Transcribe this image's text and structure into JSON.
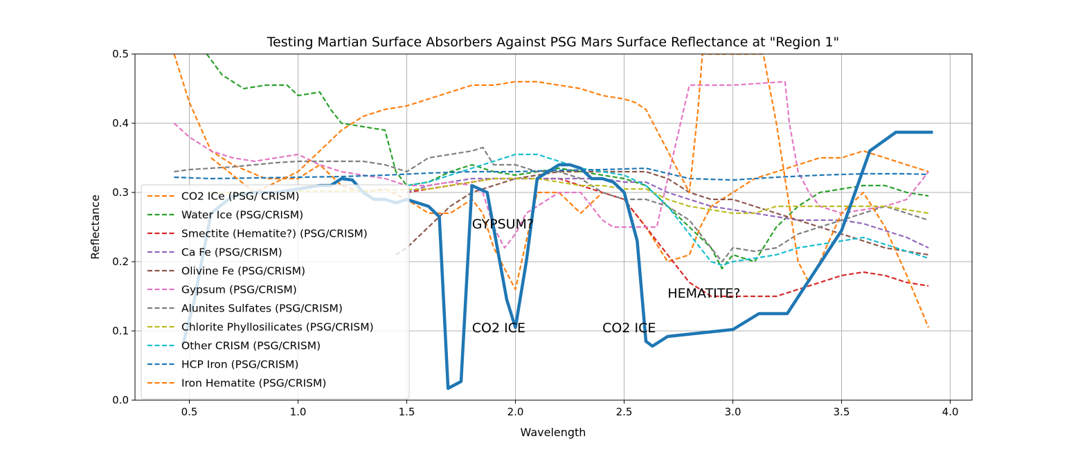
{
  "chart_data": {
    "type": "line",
    "title": "Testing Martian Surface Absorbers Against PSG Mars Surface Reflectance at \"Region 1\"",
    "xlabel": "Wavelength",
    "ylabel": "Reflectance",
    "xlim": [
      0.25,
      4.1
    ],
    "ylim": [
      0.0,
      0.5
    ],
    "xticks": [
      0.5,
      1.0,
      1.5,
      2.0,
      2.5,
      3.0,
      3.5,
      4.0
    ],
    "xtick_labels": [
      "0.5",
      "1.0",
      "1.5",
      "2.0",
      "2.5",
      "3.0",
      "3.5",
      "4.0"
    ],
    "yticks": [
      0.0,
      0.1,
      0.2,
      0.3,
      0.4,
      0.5
    ],
    "ytick_labels": [
      "0.0",
      "0.1",
      "0.2",
      "0.3",
      "0.4",
      "0.5"
    ],
    "grid": true,
    "legend_position": "lower-left",
    "annotations": [
      {
        "text": "GYPSUM?",
        "x": 1.8,
        "y": 0.25
      },
      {
        "text": "CO2 ICE",
        "x": 1.8,
        "y": 0.1
      },
      {
        "text": "CO2 ICE",
        "x": 2.4,
        "y": 0.1
      },
      {
        "text": "HEMATITE?",
        "x": 2.7,
        "y": 0.15
      }
    ],
    "psg_reflectance": {
      "color": "#1f77b4",
      "x": [
        0.47,
        0.52,
        0.6,
        0.7,
        0.8,
        0.9,
        1.0,
        1.1,
        1.15,
        1.2,
        1.25,
        1.3,
        1.35,
        1.4,
        1.45,
        1.5,
        1.55,
        1.6,
        1.65,
        1.69,
        1.75,
        1.8,
        1.87,
        1.96,
        2.0,
        2.05,
        2.1,
        2.15,
        2.2,
        2.25,
        2.3,
        2.35,
        2.4,
        2.45,
        2.5,
        2.56,
        2.6,
        2.63,
        2.7,
        3.0,
        3.12,
        3.25,
        3.5,
        3.63,
        3.75,
        3.92
      ],
      "y": [
        0.08,
        0.14,
        0.27,
        0.295,
        0.3,
        0.3,
        0.305,
        0.31,
        0.31,
        0.32,
        0.318,
        0.3,
        0.29,
        0.29,
        0.285,
        0.29,
        0.285,
        0.28,
        0.265,
        0.017,
        0.027,
        0.31,
        0.3,
        0.145,
        0.105,
        0.2,
        0.32,
        0.33,
        0.34,
        0.34,
        0.335,
        0.32,
        0.32,
        0.315,
        0.3,
        0.23,
        0.085,
        0.078,
        0.092,
        0.102,
        0.125,
        0.125,
        0.245,
        0.36,
        0.387,
        0.387
      ]
    },
    "series": [
      {
        "name": "CO2 ICe (PSG/ CRISM)",
        "color": "#ff7f0e",
        "x": [
          0.43,
          0.5,
          0.6,
          0.7,
          0.85,
          1.0,
          1.1,
          1.2,
          1.3,
          1.4,
          1.5,
          1.6,
          1.7,
          1.8,
          1.85,
          1.9,
          2.0,
          2.1,
          2.2,
          2.3,
          2.4,
          2.5,
          2.6,
          2.7,
          2.8,
          2.85,
          2.9,
          3.0,
          3.1,
          3.2,
          3.3,
          3.4,
          3.5,
          3.6,
          3.7,
          3.8,
          3.9
        ],
        "y": [
          0.5,
          0.43,
          0.36,
          0.34,
          0.32,
          0.32,
          0.34,
          0.31,
          0.3,
          0.305,
          0.29,
          0.27,
          0.27,
          0.29,
          0.27,
          0.22,
          0.16,
          0.3,
          0.3,
          0.27,
          0.3,
          0.29,
          0.25,
          0.2,
          0.21,
          0.25,
          0.28,
          0.3,
          0.32,
          0.33,
          0.34,
          0.35,
          0.35,
          0.36,
          0.35,
          0.34,
          0.33
        ]
      },
      {
        "name": "Water Ice (PSG/CRISM)",
        "color": "#2ca02c",
        "x": [
          0.58,
          0.65,
          0.75,
          0.85,
          0.95,
          1.0,
          1.1,
          1.15,
          1.2,
          1.3,
          1.4,
          1.45,
          1.5,
          1.6,
          1.7,
          1.8,
          1.9,
          2.0,
          2.1,
          2.2,
          2.3,
          2.4,
          2.5,
          2.6,
          2.7,
          2.8,
          2.9,
          2.95,
          3.0,
          3.1,
          3.2,
          3.3,
          3.4,
          3.5,
          3.6,
          3.7,
          3.8,
          3.9
        ],
        "y": [
          0.5,
          0.47,
          0.45,
          0.455,
          0.455,
          0.44,
          0.445,
          0.42,
          0.4,
          0.395,
          0.39,
          0.33,
          0.31,
          0.315,
          0.33,
          0.34,
          0.33,
          0.325,
          0.33,
          0.335,
          0.33,
          0.325,
          0.32,
          0.31,
          0.28,
          0.25,
          0.22,
          0.19,
          0.21,
          0.2,
          0.25,
          0.28,
          0.3,
          0.305,
          0.31,
          0.31,
          0.3,
          0.295
        ]
      },
      {
        "name": "Smectite (Hematite?) (PSG/CRISM)",
        "color": "#d62728",
        "x": [
          1.5,
          1.6,
          1.7,
          1.8,
          1.9,
          2.0,
          2.1,
          2.2,
          2.3,
          2.4,
          2.5,
          2.6,
          2.7,
          2.8,
          2.9,
          3.0,
          3.1,
          3.2,
          3.3,
          3.4,
          3.5,
          3.6,
          3.7,
          3.8,
          3.9
        ],
        "y": [
          0.3,
          0.305,
          0.31,
          0.315,
          0.32,
          0.32,
          0.32,
          0.32,
          0.31,
          0.3,
          0.29,
          0.25,
          0.21,
          0.17,
          0.15,
          0.15,
          0.15,
          0.15,
          0.16,
          0.17,
          0.18,
          0.185,
          0.18,
          0.17,
          0.165
        ]
      },
      {
        "name": "Ca Fe (PSG/CRISM)",
        "color": "#9467bd",
        "x": [
          1.5,
          1.6,
          1.7,
          1.8,
          1.9,
          2.0,
          2.1,
          2.2,
          2.3,
          2.4,
          2.5,
          2.6,
          2.7,
          2.8,
          2.9,
          3.0,
          3.1,
          3.2,
          3.3,
          3.4,
          3.5,
          3.6,
          3.7,
          3.8,
          3.9
        ],
        "y": [
          0.3,
          0.31,
          0.315,
          0.32,
          0.32,
          0.32,
          0.32,
          0.32,
          0.32,
          0.32,
          0.315,
          0.315,
          0.3,
          0.29,
          0.28,
          0.275,
          0.27,
          0.265,
          0.26,
          0.26,
          0.26,
          0.255,
          0.245,
          0.235,
          0.22
        ]
      },
      {
        "name": "Olivine Fe (PSG/CRISM)",
        "color": "#8c564b",
        "x": [
          1.45,
          1.5,
          1.55,
          1.6,
          1.7,
          1.8,
          1.9,
          2.0,
          2.1,
          2.2,
          2.3,
          2.4,
          2.5,
          2.6,
          2.7,
          2.8,
          2.9,
          3.0,
          3.1,
          3.2,
          3.3,
          3.4,
          3.5,
          3.6,
          3.7,
          3.8,
          3.9
        ],
        "y": [
          0.21,
          0.22,
          0.235,
          0.25,
          0.28,
          0.3,
          0.31,
          0.32,
          0.325,
          0.33,
          0.33,
          0.33,
          0.33,
          0.33,
          0.32,
          0.3,
          0.29,
          0.29,
          0.28,
          0.27,
          0.26,
          0.25,
          0.24,
          0.23,
          0.22,
          0.215,
          0.21
        ]
      },
      {
        "name": "Gypsum (PSG/CRISM)",
        "color": "#e377c2",
        "x": [
          0.43,
          0.5,
          0.6,
          0.7,
          0.8,
          0.9,
          1.0,
          1.1,
          1.2,
          1.3,
          1.4,
          1.5,
          1.6,
          1.7,
          1.8,
          1.85,
          1.9,
          1.95,
          2.0,
          2.05,
          2.1,
          2.2,
          2.3,
          2.35,
          2.4,
          2.45,
          2.5,
          2.6,
          2.65,
          2.7,
          2.8,
          3.0,
          3.24,
          3.26,
          3.3,
          3.35,
          3.4,
          3.5,
          3.6,
          3.7,
          3.8,
          3.9
        ],
        "y": [
          0.4,
          0.38,
          0.36,
          0.35,
          0.345,
          0.35,
          0.355,
          0.34,
          0.33,
          0.325,
          0.32,
          0.31,
          0.31,
          0.315,
          0.31,
          0.3,
          0.25,
          0.22,
          0.24,
          0.27,
          0.28,
          0.3,
          0.3,
          0.28,
          0.26,
          0.25,
          0.25,
          0.25,
          0.25,
          0.32,
          0.455,
          0.455,
          0.46,
          0.4,
          0.33,
          0.3,
          0.28,
          0.27,
          0.275,
          0.28,
          0.29,
          0.33
        ]
      },
      {
        "name": "Alunites Sulfates (PSG/CRISM)",
        "color": "#7f7f7f",
        "x": [
          0.43,
          0.5,
          0.6,
          0.7,
          0.8,
          0.9,
          1.0,
          1.1,
          1.2,
          1.3,
          1.4,
          1.5,
          1.6,
          1.7,
          1.8,
          1.85,
          1.9,
          2.0,
          2.1,
          2.2,
          2.3,
          2.4,
          2.5,
          2.6,
          2.7,
          2.8,
          2.9,
          2.95,
          3.0,
          3.1,
          3.2,
          3.3,
          3.4,
          3.5,
          3.6,
          3.7,
          3.8,
          3.9
        ],
        "y": [
          0.33,
          0.333,
          0.335,
          0.337,
          0.34,
          0.343,
          0.345,
          0.345,
          0.345,
          0.345,
          0.34,
          0.33,
          0.35,
          0.355,
          0.36,
          0.365,
          0.34,
          0.34,
          0.33,
          0.33,
          0.32,
          0.3,
          0.29,
          0.29,
          0.28,
          0.26,
          0.22,
          0.2,
          0.22,
          0.215,
          0.22,
          0.24,
          0.25,
          0.26,
          0.27,
          0.28,
          0.27,
          0.26
        ]
      },
      {
        "name": "Chlorite Phyllosilicates (PSG/CRISM)",
        "color": "#bcbd22",
        "x": [
          0.6,
          0.8,
          1.0,
          1.2,
          1.4,
          1.5,
          1.6,
          1.7,
          1.8,
          1.9,
          2.0,
          2.1,
          2.2,
          2.3,
          2.4,
          2.5,
          2.6,
          2.7,
          2.8,
          2.9,
          3.0,
          3.1,
          3.2,
          3.3,
          3.4,
          3.5,
          3.6,
          3.7,
          3.8,
          3.9
        ],
        "y": [
          0.3,
          0.3,
          0.302,
          0.302,
          0.303,
          0.304,
          0.305,
          0.31,
          0.315,
          0.32,
          0.32,
          0.32,
          0.315,
          0.31,
          0.31,
          0.305,
          0.305,
          0.29,
          0.28,
          0.275,
          0.27,
          0.27,
          0.28,
          0.28,
          0.28,
          0.28,
          0.28,
          0.28,
          0.275,
          0.27
        ]
      },
      {
        "name": "Other CRISM (PSG/CRISM)",
        "color": "#17becf",
        "x": [
          1.5,
          1.6,
          1.7,
          1.8,
          1.9,
          2.0,
          2.1,
          2.2,
          2.3,
          2.4,
          2.5,
          2.6,
          2.7,
          2.8,
          2.9,
          2.95,
          3.0,
          3.1,
          3.2,
          3.3,
          3.4,
          3.5,
          3.6,
          3.7,
          3.8,
          3.9
        ],
        "y": [
          0.31,
          0.315,
          0.325,
          0.335,
          0.345,
          0.355,
          0.355,
          0.345,
          0.335,
          0.33,
          0.325,
          0.31,
          0.28,
          0.24,
          0.2,
          0.195,
          0.2,
          0.205,
          0.21,
          0.22,
          0.225,
          0.23,
          0.235,
          0.225,
          0.215,
          0.205
        ]
      },
      {
        "name": "HCP Iron (PSG/CRISM)",
        "color": "#1f77b4",
        "x": [
          0.43,
          0.6,
          0.8,
          1.0,
          1.2,
          1.4,
          1.6,
          1.8,
          2.0,
          2.2,
          2.4,
          2.6,
          2.8,
          3.0,
          3.2,
          3.4,
          3.6,
          3.8,
          3.9
        ],
        "y": [
          0.322,
          0.32,
          0.321,
          0.322,
          0.323,
          0.325,
          0.328,
          0.33,
          0.33,
          0.332,
          0.333,
          0.335,
          0.32,
          0.318,
          0.322,
          0.325,
          0.327,
          0.327,
          0.326
        ]
      },
      {
        "name": "Iron Hematite (PSG/CRISM)",
        "color": "#ff7f0e",
        "x": [
          0.6,
          0.8,
          1.0,
          1.1,
          1.2,
          1.3,
          1.4,
          1.5,
          1.6,
          1.7,
          1.8,
          1.9,
          2.0,
          2.1,
          2.2,
          2.3,
          2.4,
          2.5,
          2.55,
          2.6,
          2.7,
          2.8,
          2.84,
          2.86,
          2.9,
          2.95,
          3.0,
          3.1,
          3.14,
          3.2,
          3.25,
          3.3,
          3.35,
          3.4,
          3.5,
          3.6,
          3.7,
          3.8,
          3.9
        ],
        "y": [
          0.35,
          0.3,
          0.33,
          0.36,
          0.39,
          0.41,
          0.42,
          0.425,
          0.435,
          0.445,
          0.455,
          0.455,
          0.46,
          0.46,
          0.455,
          0.45,
          0.44,
          0.435,
          0.43,
          0.42,
          0.36,
          0.3,
          0.42,
          0.5,
          0.5,
          0.5,
          0.5,
          0.5,
          0.5,
          0.4,
          0.3,
          0.2,
          0.17,
          0.2,
          0.27,
          0.3,
          0.25,
          0.18,
          0.105
        ]
      }
    ]
  }
}
